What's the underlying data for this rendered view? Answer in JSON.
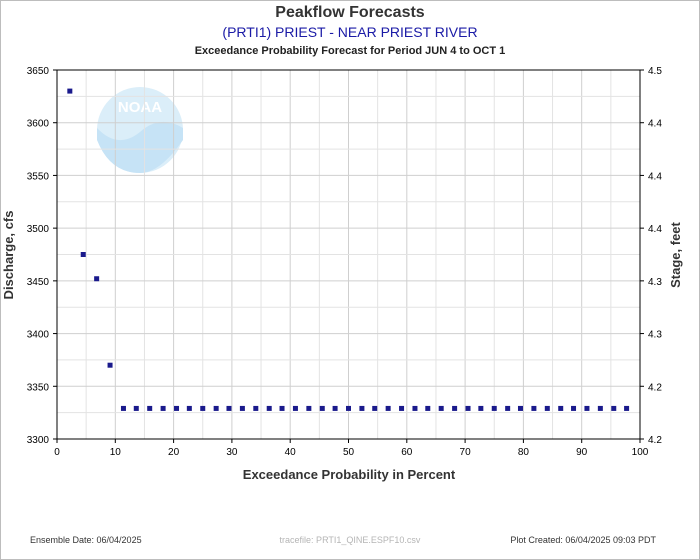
{
  "title": "Peakflow Forecasts",
  "subtitle": "(PRTI1) PRIEST - NEAR PRIEST RIVER",
  "period_label": "Exceedance Probability Forecast for Period JUN 4 to OCT 1",
  "watermark": "NOAA",
  "footer": {
    "ensemble_date": "Ensemble Date: 06/04/2025",
    "tracefile": "tracefile: PRTI1_QINE.ESPF10.csv",
    "plot_created": "Plot Created: 06/04/2025 09:03 PDT"
  },
  "colors": {
    "marker": "#1a1a8c",
    "grid": "#cfcfcf",
    "axis": "#000000",
    "subtitle": "#1a1aa6"
  },
  "chart_data": {
    "type": "scatter",
    "xlabel": "Exceedance Probability in Percent",
    "ylabel": "Discharge, cfs",
    "y2label": "Stage, feet",
    "xlim": [
      0,
      100
    ],
    "ylim": [
      3300,
      3650
    ],
    "grid": true,
    "x_ticks": [
      "0",
      "10",
      "20",
      "30",
      "40",
      "50",
      "60",
      "70",
      "80",
      "90",
      "100"
    ],
    "y_ticks": [
      "3300",
      "3350",
      "3400",
      "3450",
      "3500",
      "3550",
      "3600",
      "3650"
    ],
    "y2_ticks": [
      "4.2",
      "4.2",
      "4.3",
      "4.3",
      "4.4",
      "4.4",
      "4.4",
      "4.5"
    ],
    "x": [
      2.2,
      4.5,
      6.8,
      9.1,
      11.4,
      13.6,
      15.9,
      18.2,
      20.5,
      22.7,
      25.0,
      27.3,
      29.5,
      31.8,
      34.1,
      36.4,
      38.6,
      40.9,
      43.2,
      45.5,
      47.7,
      50.0,
      52.3,
      54.5,
      56.8,
      59.1,
      61.4,
      63.6,
      65.9,
      68.2,
      70.5,
      72.7,
      75.0,
      77.3,
      79.5,
      81.8,
      84.1,
      86.4,
      88.6,
      90.9,
      93.2,
      95.5,
      97.7
    ],
    "y": [
      3630,
      3475,
      3452,
      3370,
      3329,
      3329,
      3329,
      3329,
      3329,
      3329,
      3329,
      3329,
      3329,
      3329,
      3329,
      3329,
      3329,
      3329,
      3329,
      3329,
      3329,
      3329,
      3329,
      3329,
      3329,
      3329,
      3329,
      3329,
      3329,
      3329,
      3329,
      3329,
      3329,
      3329,
      3329,
      3329,
      3329,
      3329,
      3329,
      3329,
      3329,
      3329,
      3329
    ]
  }
}
